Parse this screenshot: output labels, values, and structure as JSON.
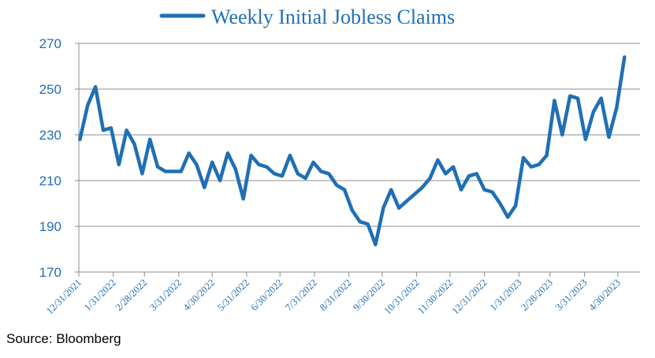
{
  "chart_data": {
    "type": "line",
    "series": [
      {
        "name": "Weekly Initial Jobless Claims",
        "color": "#1f6fb5",
        "x": [
          "2022-01-01",
          "2022-01-08",
          "2022-01-15",
          "2022-01-22",
          "2022-01-29",
          "2022-02-05",
          "2022-02-12",
          "2022-02-19",
          "2022-02-26",
          "2022-03-05",
          "2022-03-12",
          "2022-03-19",
          "2022-03-26",
          "2022-04-02",
          "2022-04-09",
          "2022-04-16",
          "2022-04-23",
          "2022-04-30",
          "2022-05-07",
          "2022-05-14",
          "2022-05-21",
          "2022-05-28",
          "2022-06-04",
          "2022-06-11",
          "2022-06-18",
          "2022-06-25",
          "2022-07-02",
          "2022-07-09",
          "2022-07-16",
          "2022-07-23",
          "2022-07-30",
          "2022-08-06",
          "2022-08-13",
          "2022-08-20",
          "2022-08-27",
          "2022-09-03",
          "2022-09-10",
          "2022-09-17",
          "2022-09-24",
          "2022-10-01",
          "2022-10-08",
          "2022-10-15",
          "2022-10-22",
          "2022-10-29",
          "2022-11-05",
          "2022-11-12",
          "2022-11-19",
          "2022-11-26",
          "2022-12-03",
          "2022-12-10",
          "2022-12-17",
          "2022-12-24",
          "2022-12-31",
          "2023-01-07",
          "2023-01-14",
          "2023-01-21",
          "2023-01-28",
          "2023-02-04",
          "2023-02-11",
          "2023-02-18",
          "2023-02-25",
          "2023-03-04",
          "2023-03-11",
          "2023-03-18",
          "2023-03-25",
          "2023-04-01",
          "2023-04-08",
          "2023-04-15",
          "2023-04-22",
          "2023-04-29",
          "2023-05-06"
        ],
        "values": [
          228,
          243,
          251,
          232,
          233,
          217,
          232,
          226,
          213,
          228,
          216,
          214,
          214,
          214,
          222,
          217,
          207,
          218,
          210,
          222,
          215,
          202,
          221,
          217,
          216,
          213,
          212,
          221,
          213,
          211,
          218,
          214,
          213,
          208,
          206,
          197,
          192,
          191,
          182,
          198,
          206,
          198,
          201,
          204,
          207,
          211,
          219,
          213,
          216,
          206,
          212,
          213,
          206,
          205,
          200,
          194,
          199,
          220,
          216,
          217,
          221,
          245,
          230,
          247,
          246,
          228,
          240,
          246,
          229,
          242,
          264
        ]
      }
    ],
    "x_ticks": [
      "12/31/2021",
      "1/31/2022",
      "2/28/2022",
      "3/31/2022",
      "4/30/2022",
      "5/31/2022",
      "6/30/2022",
      "7/31/2022",
      "8/31/2022",
      "9/30/2022",
      "10/31/2022",
      "11/30/2022",
      "12/31/2022",
      "1/31/2023",
      "2/28/2023",
      "3/31/2023",
      "4/30/2023"
    ],
    "x_tick_dates": [
      "2021-12-31",
      "2022-01-31",
      "2022-02-28",
      "2022-03-31",
      "2022-04-30",
      "2022-05-31",
      "2022-06-30",
      "2022-07-31",
      "2022-08-31",
      "2022-09-30",
      "2022-10-31",
      "2022-11-30",
      "2022-12-31",
      "2023-01-31",
      "2023-02-28",
      "2023-03-31",
      "2023-04-30"
    ],
    "y_ticks": [
      170,
      190,
      210,
      230,
      250,
      270
    ],
    "ylim": [
      170,
      270
    ],
    "xlim": [
      "2021-12-31",
      "2023-05-20"
    ],
    "grid": "horizontal",
    "legend": "top-center"
  },
  "footer": {
    "source": "Source: Bloomberg"
  }
}
